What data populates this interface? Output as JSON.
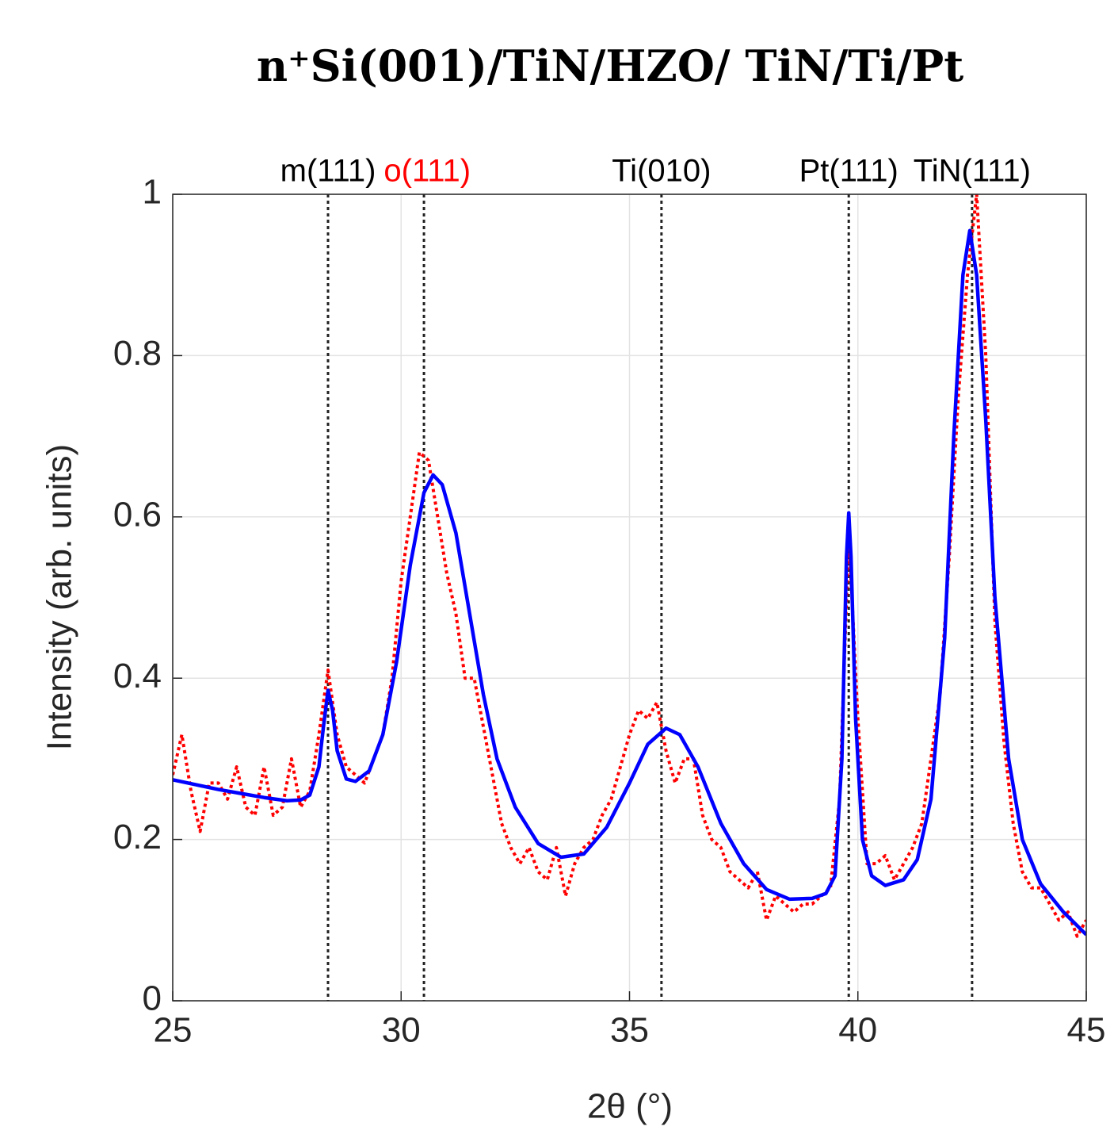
{
  "chart_data": {
    "type": "line",
    "title": "n⁺Si(001)/TiN/HZO/ TiN/Ti/Pt",
    "xlabel": "2θ (°)",
    "ylabel": "Intensity (arb. units)",
    "xlim": [
      25,
      45
    ],
    "xticks": [
      25,
      30,
      35,
      40,
      45
    ],
    "ylim": [
      0,
      1
    ],
    "yticks": [
      0,
      0.2,
      0.4,
      0.6,
      0.8,
      1
    ],
    "grid": true,
    "reference_lines": [
      {
        "x": 28.4,
        "label": "m(111)",
        "color": "#000000"
      },
      {
        "x": 30.5,
        "label": "o(111)",
        "color": "#ff0000"
      },
      {
        "x": 35.7,
        "label": "Ti(010)",
        "color": "#000000"
      },
      {
        "x": 39.8,
        "label": "Pt(111)",
        "color": "#000000"
      },
      {
        "x": 42.5,
        "label": "TiN(111)",
        "color": "#000000"
      }
    ],
    "series": [
      {
        "color": "#ff0000",
        "style": "dotted",
        "x": [
          25.0,
          25.2,
          25.4,
          25.6,
          25.8,
          26.0,
          26.2,
          26.4,
          26.6,
          26.8,
          27.0,
          27.2,
          27.4,
          27.6,
          27.8,
          28.0,
          28.2,
          28.4,
          28.6,
          28.8,
          29.0,
          29.2,
          29.4,
          29.6,
          29.8,
          30.0,
          30.2,
          30.4,
          30.6,
          30.8,
          31.0,
          31.2,
          31.4,
          31.6,
          31.8,
          32.0,
          32.2,
          32.4,
          32.6,
          32.8,
          33.0,
          33.2,
          33.4,
          33.6,
          33.8,
          34.0,
          34.2,
          34.4,
          34.6,
          34.8,
          35.0,
          35.2,
          35.4,
          35.6,
          35.8,
          36.0,
          36.2,
          36.4,
          36.6,
          36.8,
          37.0,
          37.2,
          37.4,
          37.6,
          37.8,
          38.0,
          38.2,
          38.4,
          38.6,
          38.8,
          39.0,
          39.2,
          39.4,
          39.6,
          39.8,
          40.0,
          40.2,
          40.4,
          40.6,
          40.8,
          41.0,
          41.2,
          41.4,
          41.6,
          41.8,
          42.0,
          42.2,
          42.4,
          42.6,
          42.8,
          43.0,
          43.2,
          43.4,
          43.6,
          43.8,
          44.0,
          44.2,
          44.4,
          44.6,
          44.8,
          45.0
        ],
        "values": [
          0.28,
          0.33,
          0.26,
          0.21,
          0.27,
          0.27,
          0.25,
          0.29,
          0.24,
          0.23,
          0.29,
          0.23,
          0.24,
          0.3,
          0.24,
          0.26,
          0.33,
          0.41,
          0.33,
          0.29,
          0.28,
          0.27,
          0.3,
          0.33,
          0.4,
          0.52,
          0.6,
          0.68,
          0.67,
          0.6,
          0.53,
          0.48,
          0.4,
          0.4,
          0.34,
          0.28,
          0.22,
          0.19,
          0.17,
          0.19,
          0.16,
          0.15,
          0.19,
          0.13,
          0.17,
          0.19,
          0.2,
          0.23,
          0.25,
          0.29,
          0.33,
          0.36,
          0.35,
          0.37,
          0.31,
          0.27,
          0.3,
          0.3,
          0.23,
          0.2,
          0.19,
          0.16,
          0.15,
          0.14,
          0.16,
          0.1,
          0.13,
          0.12,
          0.11,
          0.12,
          0.12,
          0.13,
          0.14,
          0.25,
          0.58,
          0.35,
          0.17,
          0.17,
          0.18,
          0.15,
          0.17,
          0.19,
          0.22,
          0.3,
          0.38,
          0.55,
          0.75,
          0.9,
          1.0,
          0.8,
          0.47,
          0.32,
          0.22,
          0.16,
          0.14,
          0.14,
          0.12,
          0.1,
          0.11,
          0.08,
          0.1
        ]
      },
      {
        "color": "#0000ff",
        "style": "solid",
        "x": [
          25,
          25.5,
          26,
          26.5,
          27,
          27.5,
          27.8,
          28,
          28.2,
          28.3,
          28.4,
          28.5,
          28.6,
          28.8,
          29,
          29.3,
          29.6,
          29.9,
          30.2,
          30.5,
          30.7,
          30.9,
          31.2,
          31.5,
          31.8,
          32.1,
          32.5,
          33,
          33.5,
          34,
          34.5,
          35,
          35.4,
          35.8,
          36.1,
          36.5,
          37,
          37.5,
          38,
          38.5,
          39,
          39.3,
          39.5,
          39.65,
          39.75,
          39.8,
          39.85,
          39.95,
          40.1,
          40.3,
          40.6,
          41,
          41.3,
          41.6,
          41.9,
          42.1,
          42.3,
          42.45,
          42.6,
          42.8,
          43,
          43.3,
          43.6,
          44,
          44.5,
          45
        ],
        "values": [
          0.274,
          0.268,
          0.262,
          0.257,
          0.252,
          0.248,
          0.249,
          0.255,
          0.29,
          0.34,
          0.385,
          0.36,
          0.31,
          0.275,
          0.272,
          0.285,
          0.33,
          0.42,
          0.54,
          0.63,
          0.652,
          0.64,
          0.58,
          0.48,
          0.38,
          0.3,
          0.24,
          0.195,
          0.178,
          0.182,
          0.215,
          0.27,
          0.318,
          0.338,
          0.33,
          0.29,
          0.22,
          0.17,
          0.138,
          0.126,
          0.127,
          0.133,
          0.155,
          0.3,
          0.55,
          0.605,
          0.55,
          0.35,
          0.2,
          0.155,
          0.143,
          0.15,
          0.175,
          0.25,
          0.45,
          0.7,
          0.9,
          0.955,
          0.9,
          0.72,
          0.5,
          0.3,
          0.2,
          0.145,
          0.11,
          0.082
        ]
      }
    ]
  }
}
